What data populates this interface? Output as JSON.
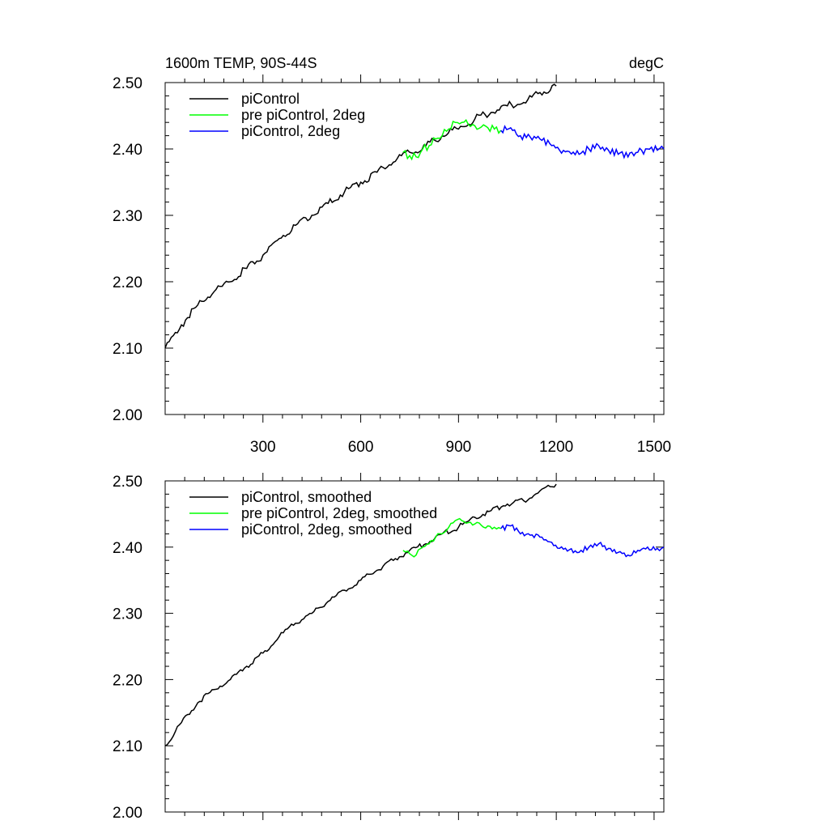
{
  "figure": {
    "title_left": "1600m TEMP, 90S-44S",
    "title_right": "degC"
  },
  "chart_data": [
    {
      "type": "line",
      "title": "1600m TEMP, 90S-44S",
      "units": "degC",
      "xlabel": "",
      "ylabel": "",
      "xlim": [
        0,
        1530
      ],
      "ylim": [
        2.0,
        2.5
      ],
      "xticks": [
        300,
        600,
        900,
        1200,
        1500
      ],
      "xtick_labels": [
        "300",
        "600",
        "900",
        "1200",
        "1500"
      ],
      "yticks": [
        2.0,
        2.1,
        2.2,
        2.3,
        2.4,
        2.5
      ],
      "ytick_labels": [
        "2.00",
        "2.10",
        "2.20",
        "2.30",
        "2.40",
        "2.50"
      ],
      "legend": "top-left",
      "series": [
        {
          "name": "piControl",
          "color": "#000000",
          "x": [
            0,
            50,
            100,
            150,
            200,
            250,
            300,
            350,
            400,
            450,
            500,
            550,
            600,
            650,
            700,
            750,
            800,
            850,
            900,
            950,
            1000,
            1050,
            1100,
            1150,
            1200
          ],
          "y": [
            2.1,
            2.135,
            2.165,
            2.185,
            2.2,
            2.22,
            2.24,
            2.265,
            2.285,
            2.3,
            2.318,
            2.335,
            2.35,
            2.365,
            2.38,
            2.395,
            2.405,
            2.42,
            2.43,
            2.445,
            2.455,
            2.465,
            2.47,
            2.485,
            2.495
          ]
        },
        {
          "name": "pre piControl, 2deg",
          "color": "#00ff00",
          "x": [
            730,
            750,
            770,
            790,
            810,
            830,
            850,
            870,
            890,
            910,
            930,
            950,
            970,
            990,
            1010,
            1030
          ],
          "y": [
            2.395,
            2.39,
            2.388,
            2.4,
            2.405,
            2.415,
            2.42,
            2.43,
            2.44,
            2.44,
            2.437,
            2.435,
            2.433,
            2.432,
            2.43,
            2.428
          ]
        },
        {
          "name": "piControl, 2deg",
          "color": "#0000ff",
          "x": [
            1030,
            1060,
            1090,
            1120,
            1150,
            1180,
            1210,
            1240,
            1270,
            1300,
            1330,
            1360,
            1390,
            1420,
            1450,
            1480,
            1510,
            1530
          ],
          "y": [
            2.428,
            2.432,
            2.42,
            2.418,
            2.415,
            2.408,
            2.398,
            2.396,
            2.392,
            2.4,
            2.405,
            2.398,
            2.392,
            2.388,
            2.395,
            2.4,
            2.398,
            2.4
          ]
        }
      ]
    },
    {
      "type": "line",
      "title": "",
      "xlabel": "",
      "ylabel": "",
      "xlim": [
        0,
        1530
      ],
      "ylim": [
        2.0,
        2.5
      ],
      "xticks": [
        300,
        600,
        900,
        1200,
        1500
      ],
      "yticks": [
        2.0,
        2.1,
        2.2,
        2.3,
        2.4,
        2.5
      ],
      "ytick_labels": [
        "2.00",
        "2.10",
        "2.20",
        "2.30",
        "2.40",
        "2.50"
      ],
      "legend": "top-left",
      "series": [
        {
          "name": "piControl, smoothed",
          "color": "#000000",
          "x": [
            0,
            50,
            100,
            150,
            200,
            250,
            300,
            350,
            400,
            450,
            500,
            550,
            600,
            650,
            700,
            750,
            800,
            850,
            900,
            950,
            1000,
            1050,
            1100,
            1150,
            1200
          ],
          "y": [
            2.1,
            2.135,
            2.165,
            2.185,
            2.2,
            2.22,
            2.24,
            2.265,
            2.285,
            2.3,
            2.318,
            2.335,
            2.35,
            2.365,
            2.38,
            2.395,
            2.405,
            2.42,
            2.43,
            2.445,
            2.455,
            2.465,
            2.47,
            2.485,
            2.495
          ]
        },
        {
          "name": "pre piControl, 2deg, smoothed",
          "color": "#00ff00",
          "x": [
            730,
            750,
            770,
            790,
            810,
            830,
            850,
            870,
            890,
            910,
            930,
            950,
            970,
            990,
            1010,
            1030
          ],
          "y": [
            2.395,
            2.39,
            2.388,
            2.4,
            2.405,
            2.415,
            2.42,
            2.43,
            2.44,
            2.44,
            2.437,
            2.435,
            2.433,
            2.432,
            2.43,
            2.428
          ]
        },
        {
          "name": "piControl, 2deg, smoothed",
          "color": "#0000ff",
          "x": [
            1030,
            1060,
            1090,
            1120,
            1150,
            1180,
            1210,
            1240,
            1270,
            1300,
            1330,
            1360,
            1390,
            1420,
            1450,
            1480,
            1510,
            1530
          ],
          "y": [
            2.428,
            2.432,
            2.42,
            2.418,
            2.415,
            2.408,
            2.398,
            2.396,
            2.392,
            2.4,
            2.405,
            2.398,
            2.392,
            2.388,
            2.395,
            2.4,
            2.398,
            2.4
          ]
        }
      ]
    }
  ]
}
